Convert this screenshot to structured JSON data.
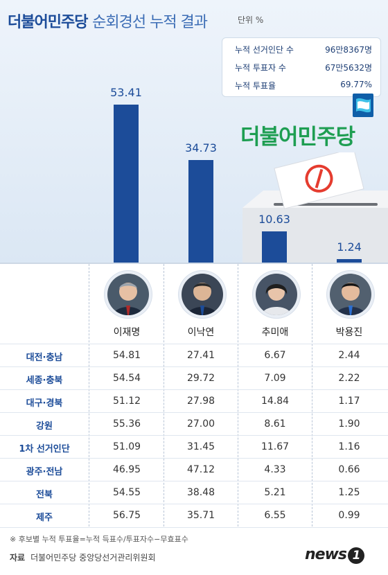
{
  "title": {
    "main": "더불어민주당",
    "rest": "순회경선 누적 결과",
    "unit": "단위 %"
  },
  "summary": [
    {
      "label": "누적 선거인단 수",
      "value": "96만8367명"
    },
    {
      "label": "누적 투표자 수",
      "value": "67만5632명"
    },
    {
      "label": "누적 투표율",
      "value": "69.77%"
    }
  ],
  "logo_text": "더불어민주당",
  "colors": {
    "bar": "#1c4c99",
    "title": "#1c4c99",
    "logo_green": "#1e9e52",
    "ballot_red": "#e53c2f"
  },
  "chart_data": {
    "type": "bar",
    "categories": [
      "이재명",
      "이낙연",
      "추미애",
      "박용진"
    ],
    "values": [
      53.41,
      34.73,
      10.63,
      1.24
    ],
    "value_labels": [
      "53.41",
      "34.73",
      "10.63",
      "1.24"
    ],
    "ylabel": "",
    "ylim": [
      0,
      60
    ]
  },
  "table": {
    "columns": [
      "이재명",
      "이낙연",
      "추미애",
      "박용진"
    ],
    "rows": [
      {
        "region": "대전·충남",
        "values": [
          "54.81",
          "27.41",
          "6.67",
          "2.44"
        ]
      },
      {
        "region": "세종·충북",
        "values": [
          "54.54",
          "29.72",
          "7.09",
          "2.22"
        ]
      },
      {
        "region": "대구·경북",
        "values": [
          "51.12",
          "27.98",
          "14.84",
          "1.17"
        ]
      },
      {
        "region": "강원",
        "values": [
          "55.36",
          "27.00",
          "8.61",
          "1.90"
        ]
      },
      {
        "region": "1차 선거인단",
        "values": [
          "51.09",
          "31.45",
          "11.67",
          "1.16"
        ]
      },
      {
        "region": "광주·전남",
        "values": [
          "46.95",
          "47.12",
          "4.33",
          "0.66"
        ]
      },
      {
        "region": "전북",
        "values": [
          "54.55",
          "38.48",
          "5.21",
          "1.25"
        ]
      },
      {
        "region": "제주",
        "values": [
          "56.75",
          "35.71",
          "6.55",
          "0.99"
        ]
      }
    ]
  },
  "footnote": "※ 후보별 누적 투표율=누적 득표수/투표자수−무효표수",
  "source": {
    "label": "자료",
    "text": "더불어민주당 중앙당선거관리위원회"
  },
  "brand": {
    "word": "news",
    "mark": "1"
  }
}
